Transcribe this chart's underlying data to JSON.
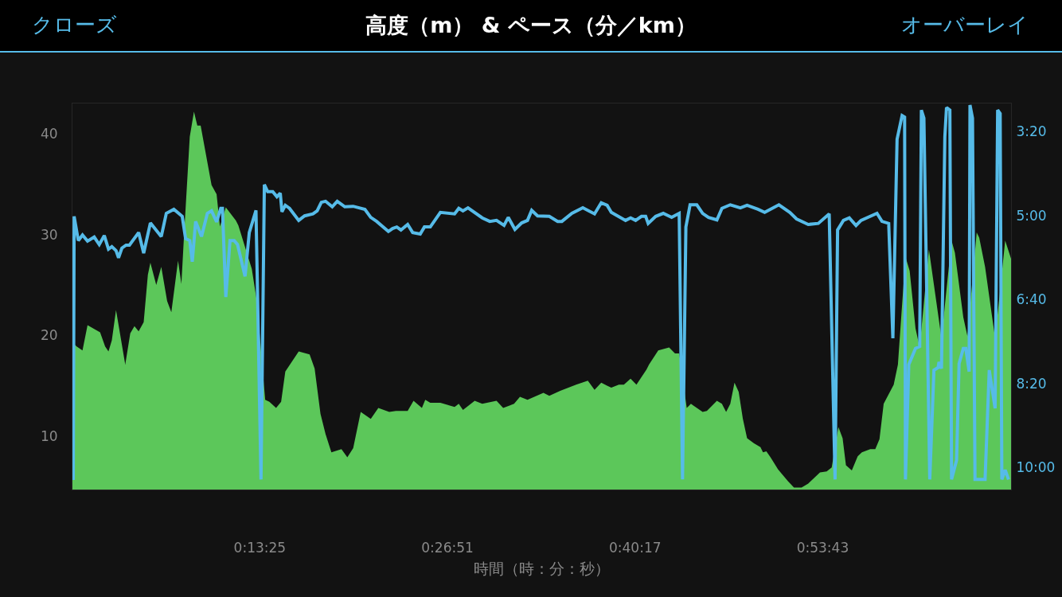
{
  "chart_data": {
    "type": "area",
    "title": "高度（m） & ペース（分／km）",
    "xlabel": "時間（時：分：秒）",
    "annotations": [
      "クローズ",
      "オーバーレイ"
    ],
    "xlim": [
      0,
      1.12
    ],
    "xticks": [
      {
        "value": 0.223611,
        "label": "0:13:25"
      },
      {
        "value": 0.4475,
        "label": "0:26:51"
      },
      {
        "value": 0.671389,
        "label": "0:40:17"
      },
      {
        "value": 0.895278,
        "label": "0:53:43"
      }
    ],
    "ylim": [
      4.7,
      43
    ],
    "yticks": [
      10,
      20,
      30,
      40
    ],
    "y2lim": [
      10.44,
      2.78
    ],
    "y2ticks": [
      {
        "value": 3.3333,
        "label": "3:20"
      },
      {
        "value": 5,
        "label": "5:00"
      },
      {
        "value": 6.6667,
        "label": "6:40"
      },
      {
        "value": 8.3333,
        "label": "8:20"
      },
      {
        "value": 10,
        "label": "10:00"
      }
    ],
    "grid": false,
    "series": [
      {
        "color": "#5cc75a",
        "x": [
          0,
          0.005,
          0.012,
          0.018,
          0.033,
          0.039,
          0.043,
          0.047,
          0.052,
          0.063,
          0.069,
          0.074,
          0.079,
          0.085,
          0.09,
          0.093,
          0.1,
          0.106,
          0.113,
          0.118,
          0.126,
          0.13,
          0.133,
          0.14,
          0.145,
          0.149,
          0.153,
          0.166,
          0.172,
          0.176,
          0.183,
          0.195,
          0.198,
          0.214,
          0.22,
          0.23,
          0.235,
          0.243,
          0.249,
          0.254,
          0.27,
          0.283,
          0.289,
          0.296,
          0.302,
          0.309,
          0.321,
          0.328,
          0.335,
          0.344,
          0.356,
          0.365,
          0.378,
          0.386,
          0.4,
          0.407,
          0.417,
          0.421,
          0.427,
          0.439,
          0.456,
          0.461,
          0.466,
          0.48,
          0.489,
          0.506,
          0.514,
          0.527,
          0.534,
          0.543,
          0.562,
          0.569,
          0.582,
          0.601,
          0.615,
          0.623,
          0.631,
          0.643,
          0.652,
          0.658,
          0.666,
          0.673,
          0.685,
          0.688,
          0.699,
          0.712,
          0.719,
          0.724,
          0.733,
          0.738,
          0.752,
          0.757,
          0.769,
          0.775,
          0.78,
          0.785,
          0.79,
          0.795,
          0.8,
          0.805,
          0.813,
          0.821,
          0.824,
          0.828,
          0.833,
          0.842,
          0.854,
          0.861,
          0.87,
          0.878,
          0.892,
          0.9,
          0.906,
          0.914,
          0.919,
          0.923,
          0.93,
          0.937,
          0.942,
          0.952,
          0.958,
          0.963,
          0.968,
          0.98,
          0.985,
          0.994,
          0.999,
          1.006,
          1.011,
          1.022,
          1.028,
          1.037,
          1.049,
          1.053,
          1.063,
          1.068,
          1.079,
          1.082,
          1.089,
          1.101,
          1.113,
          1.12
        ],
        "values": [
          19.3,
          18.9,
          18.5,
          21.0,
          20.3,
          18.9,
          18.4,
          19.5,
          22.5,
          17.1,
          20.2,
          20.9,
          20.4,
          21.3,
          26.0,
          27.2,
          25.0,
          26.8,
          23.4,
          22.3,
          27.4,
          25.1,
          29.7,
          39.7,
          42.2,
          40.8,
          40.8,
          34.9,
          34.0,
          30.8,
          32.7,
          31.4,
          30.9,
          26.6,
          23.4,
          13.6,
          13.4,
          12.8,
          13.4,
          16.4,
          18.4,
          18.1,
          16.7,
          12.2,
          10.2,
          8.4,
          8.7,
          7.9,
          8.8,
          12.4,
          11.7,
          12.8,
          12.4,
          12.5,
          12.5,
          13.5,
          12.8,
          13.6,
          13.3,
          13.3,
          12.9,
          13.2,
          12.6,
          13.5,
          13.2,
          13.5,
          12.8,
          13.2,
          13.9,
          13.6,
          14.3,
          14.0,
          14.5,
          15.1,
          15.5,
          14.6,
          15.3,
          14.8,
          15.1,
          15.1,
          15.7,
          15.1,
          16.6,
          17.1,
          18.5,
          18.8,
          18.2,
          18.2,
          12.8,
          13.2,
          12.4,
          12.5,
          13.5,
          13.2,
          12.4,
          13.2,
          15.3,
          14.4,
          11.7,
          9.8,
          9.3,
          8.9,
          8.4,
          8.5,
          7.9,
          6.7,
          5.5,
          4.9,
          4.9,
          5.3,
          6.4,
          6.5,
          6.9,
          10.9,
          9.8,
          7.1,
          6.6,
          8.0,
          8.4,
          8.7,
          8.7,
          9.7,
          13.2,
          15.1,
          17.1,
          27.8,
          26.4,
          20.7,
          18.8,
          28.5,
          25.0,
          19.7,
          29.4,
          28.2,
          21.8,
          19.9,
          30.2,
          29.7,
          26.8,
          19.7,
          29.4,
          27.6
        ]
      },
      {
        "type": "line",
        "axis": "y2",
        "color": "#56bbe8",
        "x": [
          0.001,
          0.002,
          0.007,
          0.012,
          0.018,
          0.026,
          0.032,
          0.038,
          0.043,
          0.047,
          0.052,
          0.055,
          0.059,
          0.064,
          0.068,
          0.079,
          0.085,
          0.093,
          0.106,
          0.112,
          0.121,
          0.131,
          0.135,
          0.14,
          0.143,
          0.147,
          0.154,
          0.161,
          0.166,
          0.172,
          0.177,
          0.179,
          0.183,
          0.188,
          0.193,
          0.197,
          0.206,
          0.211,
          0.219,
          0.225,
          0.229,
          0.233,
          0.239,
          0.244,
          0.248,
          0.25,
          0.254,
          0.259,
          0.27,
          0.277,
          0.287,
          0.292,
          0.297,
          0.302,
          0.31,
          0.316,
          0.325,
          0.335,
          0.349,
          0.356,
          0.363,
          0.377,
          0.382,
          0.387,
          0.392,
          0.4,
          0.406,
          0.415,
          0.42,
          0.427,
          0.439,
          0.456,
          0.461,
          0.466,
          0.472,
          0.489,
          0.498,
          0.506,
          0.515,
          0.52,
          0.528,
          0.536,
          0.543,
          0.548,
          0.555,
          0.569,
          0.579,
          0.584,
          0.596,
          0.609,
          0.623,
          0.631,
          0.638,
          0.643,
          0.66,
          0.666,
          0.672,
          0.679,
          0.684,
          0.687,
          0.696,
          0.705,
          0.715,
          0.724,
          0.728,
          0.732,
          0.737,
          0.745,
          0.752,
          0.759,
          0.769,
          0.775,
          0.785,
          0.797,
          0.805,
          0.818,
          0.826,
          0.843,
          0.856,
          0.864,
          0.878,
          0.89,
          0.903,
          0.91,
          0.913,
          0.92,
          0.927,
          0.935,
          0.941,
          0.96,
          0.966,
          0.974,
          0.979,
          0.984,
          0.99,
          0.993,
          0.994,
          0.998,
          1.006,
          1.011,
          1.013,
          1.016,
          1.023,
          1.028,
          1.033,
          1.034,
          1.037,
          1.041,
          1.043,
          1.047,
          1.049,
          1.055,
          1.058,
          1.063,
          1.066,
          1.07,
          1.071,
          1.074,
          1.077,
          1.089,
          1.094,
          1.101,
          1.104,
          1.107,
          1.109,
          1.113,
          1.117
        ],
        "values": [
          10.25,
          5.02,
          5.5,
          5.39,
          5.51,
          5.43,
          5.58,
          5.4,
          5.67,
          5.62,
          5.7,
          5.84,
          5.65,
          5.59,
          5.59,
          5.34,
          5.75,
          5.15,
          5.42,
          4.96,
          4.88,
          5.02,
          5.46,
          5.5,
          5.92,
          5.12,
          5.42,
          4.96,
          4.91,
          5.13,
          4.86,
          4.86,
          6.62,
          5.5,
          5.5,
          5.58,
          6.21,
          5.34,
          4.9,
          10.24,
          4.39,
          4.53,
          4.53,
          4.63,
          4.56,
          4.93,
          4.8,
          4.86,
          5.1,
          5.01,
          4.97,
          4.91,
          4.74,
          4.72,
          4.83,
          4.72,
          4.83,
          4.82,
          4.88,
          5.04,
          5.12,
          5.32,
          5.26,
          5.23,
          5.29,
          5.18,
          5.34,
          5.37,
          5.23,
          5.23,
          4.94,
          4.97,
          4.86,
          4.91,
          4.85,
          5.05,
          5.12,
          5.1,
          5.2,
          5.04,
          5.28,
          5.15,
          5.1,
          4.9,
          5.01,
          5.02,
          5.12,
          5.12,
          4.96,
          4.85,
          4.97,
          4.75,
          4.8,
          4.94,
          5.1,
          5.05,
          5.1,
          5.02,
          5.02,
          5.16,
          5.02,
          4.96,
          5.04,
          4.96,
          10.24,
          5.23,
          4.79,
          4.79,
          4.96,
          5.04,
          5.09,
          4.86,
          4.79,
          4.85,
          4.8,
          4.88,
          4.94,
          4.79,
          4.94,
          5.07,
          5.18,
          5.16,
          4.97,
          10.24,
          5.29,
          5.1,
          5.05,
          5.2,
          5.1,
          4.96,
          5.12,
          5.16,
          7.44,
          3.49,
          3.02,
          3.05,
          10.24,
          7.96,
          7.64,
          7.6,
          2.91,
          3.07,
          10.24,
          8.07,
          8.02,
          7.91,
          8.04,
          3.44,
          2.86,
          2.91,
          10.24,
          9.86,
          7.94,
          7.64,
          7.64,
          8.1,
          2.81,
          3.07,
          10.24,
          10.24,
          8.07,
          8.83,
          2.91,
          2.98,
          10.24,
          10.05,
          10.24
        ]
      }
    ]
  }
}
